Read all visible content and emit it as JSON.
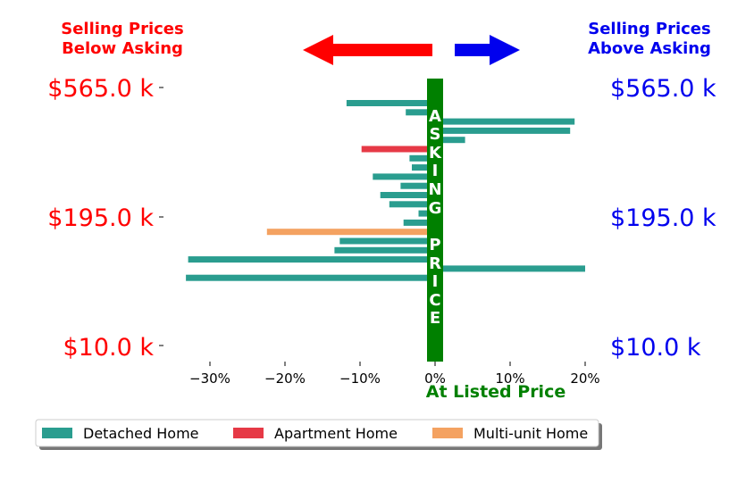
{
  "header": {
    "left_line1": "Selling Prices",
    "left_line2": "Below Asking",
    "right_line1": "Selling Prices",
    "right_line2": "Above Asking"
  },
  "colors": {
    "below": "#ff0000",
    "above": "#0000ee",
    "asking_band": "#008000",
    "detached": "#2a9d8f",
    "apartment": "#e63946",
    "multi_unit": "#f4a261"
  },
  "asking_label": "ASKING PRICE",
  "price_labels": {
    "left": [
      "$565.0 k",
      "$195.0 k",
      "$10.0 k"
    ],
    "right": [
      "$565.0 k",
      "$195.0 k",
      "$10.0 k"
    ]
  },
  "chart_data": {
    "type": "bar",
    "orientation": "horizontal",
    "xlabel": "At Listed Price",
    "xlim": [
      -35,
      20
    ],
    "xticks": [
      -30,
      -20,
      -10,
      0,
      10,
      20
    ],
    "xtick_labels": [
      "−30%",
      "−20%",
      "−10%",
      "0%",
      "10%",
      "20%"
    ],
    "series": [
      {
        "name": "Detached Home",
        "color": "#2a9d8f"
      },
      {
        "name": "Apartment Home",
        "color": "#e63946"
      },
      {
        "name": "Multi-unit Home",
        "color": "#f4a261"
      }
    ],
    "bars": [
      {
        "value": -11.8,
        "type": "Detached Home"
      },
      {
        "value": -3.9,
        "type": "Detached Home"
      },
      {
        "value": 18.6,
        "type": "Detached Home"
      },
      {
        "value": 18.0,
        "type": "Detached Home"
      },
      {
        "value": 4.0,
        "type": "Detached Home"
      },
      {
        "value": -9.8,
        "type": "Apartment Home"
      },
      {
        "value": -3.4,
        "type": "Detached Home"
      },
      {
        "value": -3.1,
        "type": "Detached Home"
      },
      {
        "value": -8.3,
        "type": "Detached Home"
      },
      {
        "value": -4.6,
        "type": "Detached Home"
      },
      {
        "value": -7.3,
        "type": "Detached Home"
      },
      {
        "value": -6.1,
        "type": "Detached Home"
      },
      {
        "value": -2.2,
        "type": "Detached Home"
      },
      {
        "value": -4.2,
        "type": "Detached Home"
      },
      {
        "value": -22.4,
        "type": "Multi-unit Home"
      },
      {
        "value": -12.7,
        "type": "Detached Home"
      },
      {
        "value": -13.4,
        "type": "Detached Home"
      },
      {
        "value": -32.9,
        "type": "Detached Home"
      },
      {
        "value": 20.0,
        "type": "Detached Home"
      },
      {
        "value": -33.2,
        "type": "Detached Home"
      }
    ]
  },
  "legend": [
    {
      "label": "Detached Home",
      "color": "#2a9d8f"
    },
    {
      "label": "Apartment Home",
      "color": "#e63946"
    },
    {
      "label": "Multi-unit Home",
      "color": "#f4a261"
    }
  ]
}
